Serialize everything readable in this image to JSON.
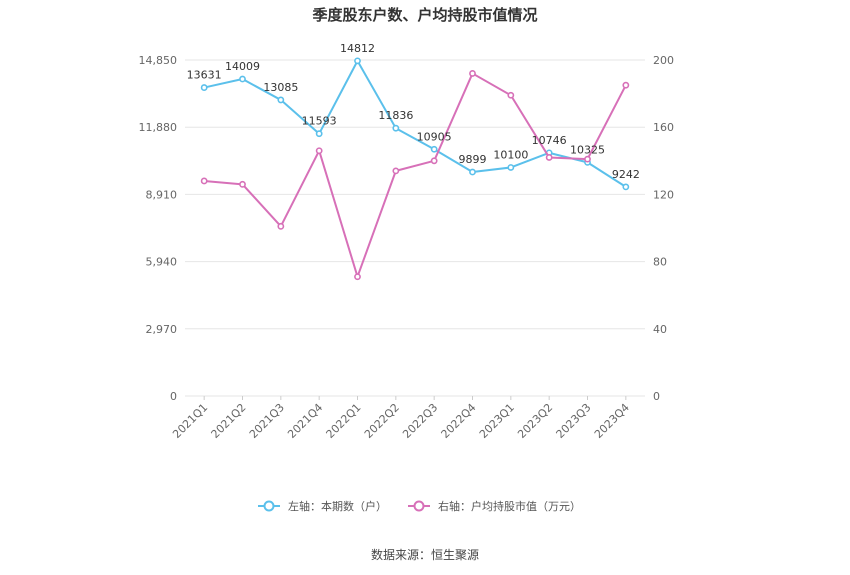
{
  "page": {
    "title": "季度股东户数、户均持股市值情况",
    "source": "数据来源：恒生聚源"
  },
  "colors": {
    "left_series": "#5bc0eb",
    "right_series": "#d770b8",
    "grid": "#e6e6e6",
    "axis_text": "#666666"
  },
  "chart_data": {
    "type": "line",
    "title": "季度股东户数、户均持股市值情况",
    "categories": [
      "2021Q1",
      "2021Q2",
      "2021Q3",
      "2021Q4",
      "2022Q1",
      "2022Q2",
      "2022Q3",
      "2022Q4",
      "2023Q1",
      "2023Q2",
      "2023Q3",
      "2023Q4"
    ],
    "left_axis": {
      "min": 0,
      "max": 14850,
      "ticks": [
        "0",
        "2,970",
        "5,940",
        "8,910",
        "11,880",
        "14,850"
      ],
      "tick_values": [
        0,
        2970,
        5940,
        8910,
        11880,
        14850
      ]
    },
    "right_axis": {
      "min": 0,
      "max": 200,
      "ticks": [
        "0",
        "40",
        "80",
        "120",
        "160",
        "200"
      ],
      "tick_values": [
        0,
        40,
        80,
        120,
        160,
        200
      ]
    },
    "grid": true,
    "legend_position": "bottom",
    "series": [
      {
        "name": "左轴：本期数（户）",
        "axis": "left",
        "values": [
          13631,
          14009,
          13085,
          11593,
          14812,
          11836,
          10905,
          9899,
          10100,
          10746,
          10325,
          9242
        ],
        "labels": [
          "13631",
          "14009",
          "13085",
          "11593",
          "14812",
          "11836",
          "10905",
          "9899",
          "10100",
          "10746",
          "10325",
          "9242"
        ]
      },
      {
        "name": "右轴：户均持股市值（万元）",
        "axis": "right",
        "values": [
          128,
          126,
          101,
          146,
          71,
          134,
          140,
          192,
          179,
          142,
          141,
          185
        ]
      }
    ]
  }
}
